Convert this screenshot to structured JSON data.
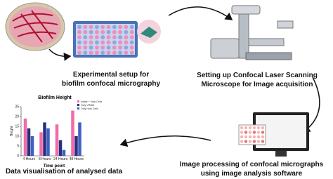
{
  "steps": [
    {
      "label_lines": [
        "Experimental setup for",
        "biofilm confocal micrography"
      ]
    },
    {
      "label_lines": [
        "Setting up Confocal Laser Scanning",
        "Microscope for Image acquisition"
      ]
    },
    {
      "label_lines": [
        "Image processing of confocal micrographs",
        "using image analysis software"
      ]
    },
    {
      "label_lines": [
        "Data visualisation of analysed data"
      ]
    }
  ],
  "chart_data": {
    "type": "bar",
    "title": "Biofilm Height",
    "x_label": "Time point",
    "y_label": "Height",
    "categories": [
      "4 Hours",
      "8 Hours",
      "24 Hours",
      "48 Hours"
    ],
    "series": [
      {
        "name": "Intake + Host Cells",
        "color": "#f06ca8",
        "values": [
          19,
          12,
          16,
          23
        ]
      },
      {
        "name": "Only VRMM",
        "color": "#2a2f7a",
        "values": [
          14,
          17,
          8,
          10
        ]
      },
      {
        "name": "Only Host Cells",
        "color": "#3f5fc4",
        "values": [
          10,
          14,
          3,
          17
        ]
      }
    ],
    "ylim": [
      0,
      25
    ],
    "yticks": [
      0,
      5,
      10,
      15,
      20,
      25
    ]
  }
}
